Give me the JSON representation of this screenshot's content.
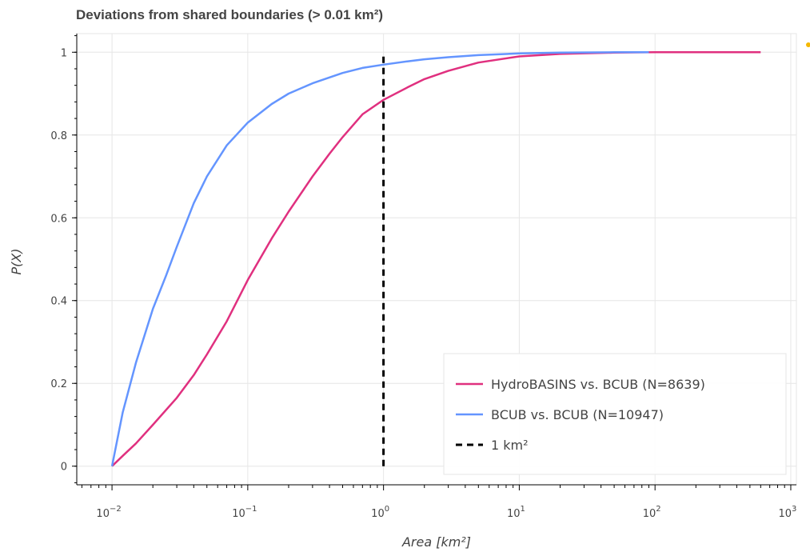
{
  "chart_data": {
    "type": "line",
    "title": "Deviations from shared boundaries  (> 0.01 km²)",
    "xlabel": "Area [km²]",
    "ylabel": "P(X)",
    "x_scale": "log",
    "xlim": [
      0.0055,
      1100
    ],
    "ylim": [
      -0.045,
      1.045
    ],
    "x_ticks": [
      {
        "value": 0.01,
        "base": "10",
        "exp": "−2"
      },
      {
        "value": 0.1,
        "base": "10",
        "exp": "−1"
      },
      {
        "value": 1,
        "base": "10",
        "exp": "0"
      },
      {
        "value": 10,
        "base": "10",
        "exp": "1"
      },
      {
        "value": 100,
        "base": "10",
        "exp": "2"
      },
      {
        "value": 1000,
        "base": "10",
        "exp": "3"
      }
    ],
    "y_ticks": [
      {
        "value": 0,
        "label": "0"
      },
      {
        "value": 0.2,
        "label": "0.2"
      },
      {
        "value": 0.4,
        "label": "0.4"
      },
      {
        "value": 0.6,
        "label": "0.6"
      },
      {
        "value": 0.8,
        "label": "0.8"
      },
      {
        "value": 1,
        "label": "1"
      }
    ],
    "grid": true,
    "legend_position": "bottom-right",
    "series": [
      {
        "name": "HydroBASINS vs. BCUB (N=8639)",
        "color": "#e0307f",
        "x": [
          0.01,
          0.012,
          0.015,
          0.02,
          0.03,
          0.04,
          0.05,
          0.07,
          0.1,
          0.15,
          0.2,
          0.3,
          0.4,
          0.5,
          0.7,
          1,
          1.5,
          2,
          3,
          5,
          10,
          20,
          50,
          100,
          300,
          600
        ],
        "y": [
          0,
          0.025,
          0.055,
          0.1,
          0.165,
          0.22,
          0.27,
          0.35,
          0.45,
          0.55,
          0.615,
          0.7,
          0.755,
          0.795,
          0.85,
          0.885,
          0.915,
          0.935,
          0.955,
          0.975,
          0.99,
          0.996,
          0.999,
          1,
          1,
          1
        ]
      },
      {
        "name": "BCUB vs. BCUB (N=10947)",
        "color": "#6495ff",
        "x": [
          0.01,
          0.012,
          0.015,
          0.02,
          0.025,
          0.03,
          0.04,
          0.05,
          0.07,
          0.1,
          0.15,
          0.2,
          0.3,
          0.5,
          0.7,
          1,
          1.5,
          2,
          3,
          5,
          10,
          20,
          50,
          90
        ],
        "y": [
          0,
          0.13,
          0.25,
          0.38,
          0.46,
          0.53,
          0.635,
          0.7,
          0.775,
          0.83,
          0.875,
          0.9,
          0.925,
          0.95,
          0.962,
          0.97,
          0.978,
          0.983,
          0.988,
          0.993,
          0.997,
          0.999,
          1,
          1
        ]
      },
      {
        "name": "1 km²",
        "color": "#000000",
        "style": "dashed",
        "x": [
          1,
          1
        ],
        "y": [
          0,
          1
        ]
      }
    ]
  }
}
